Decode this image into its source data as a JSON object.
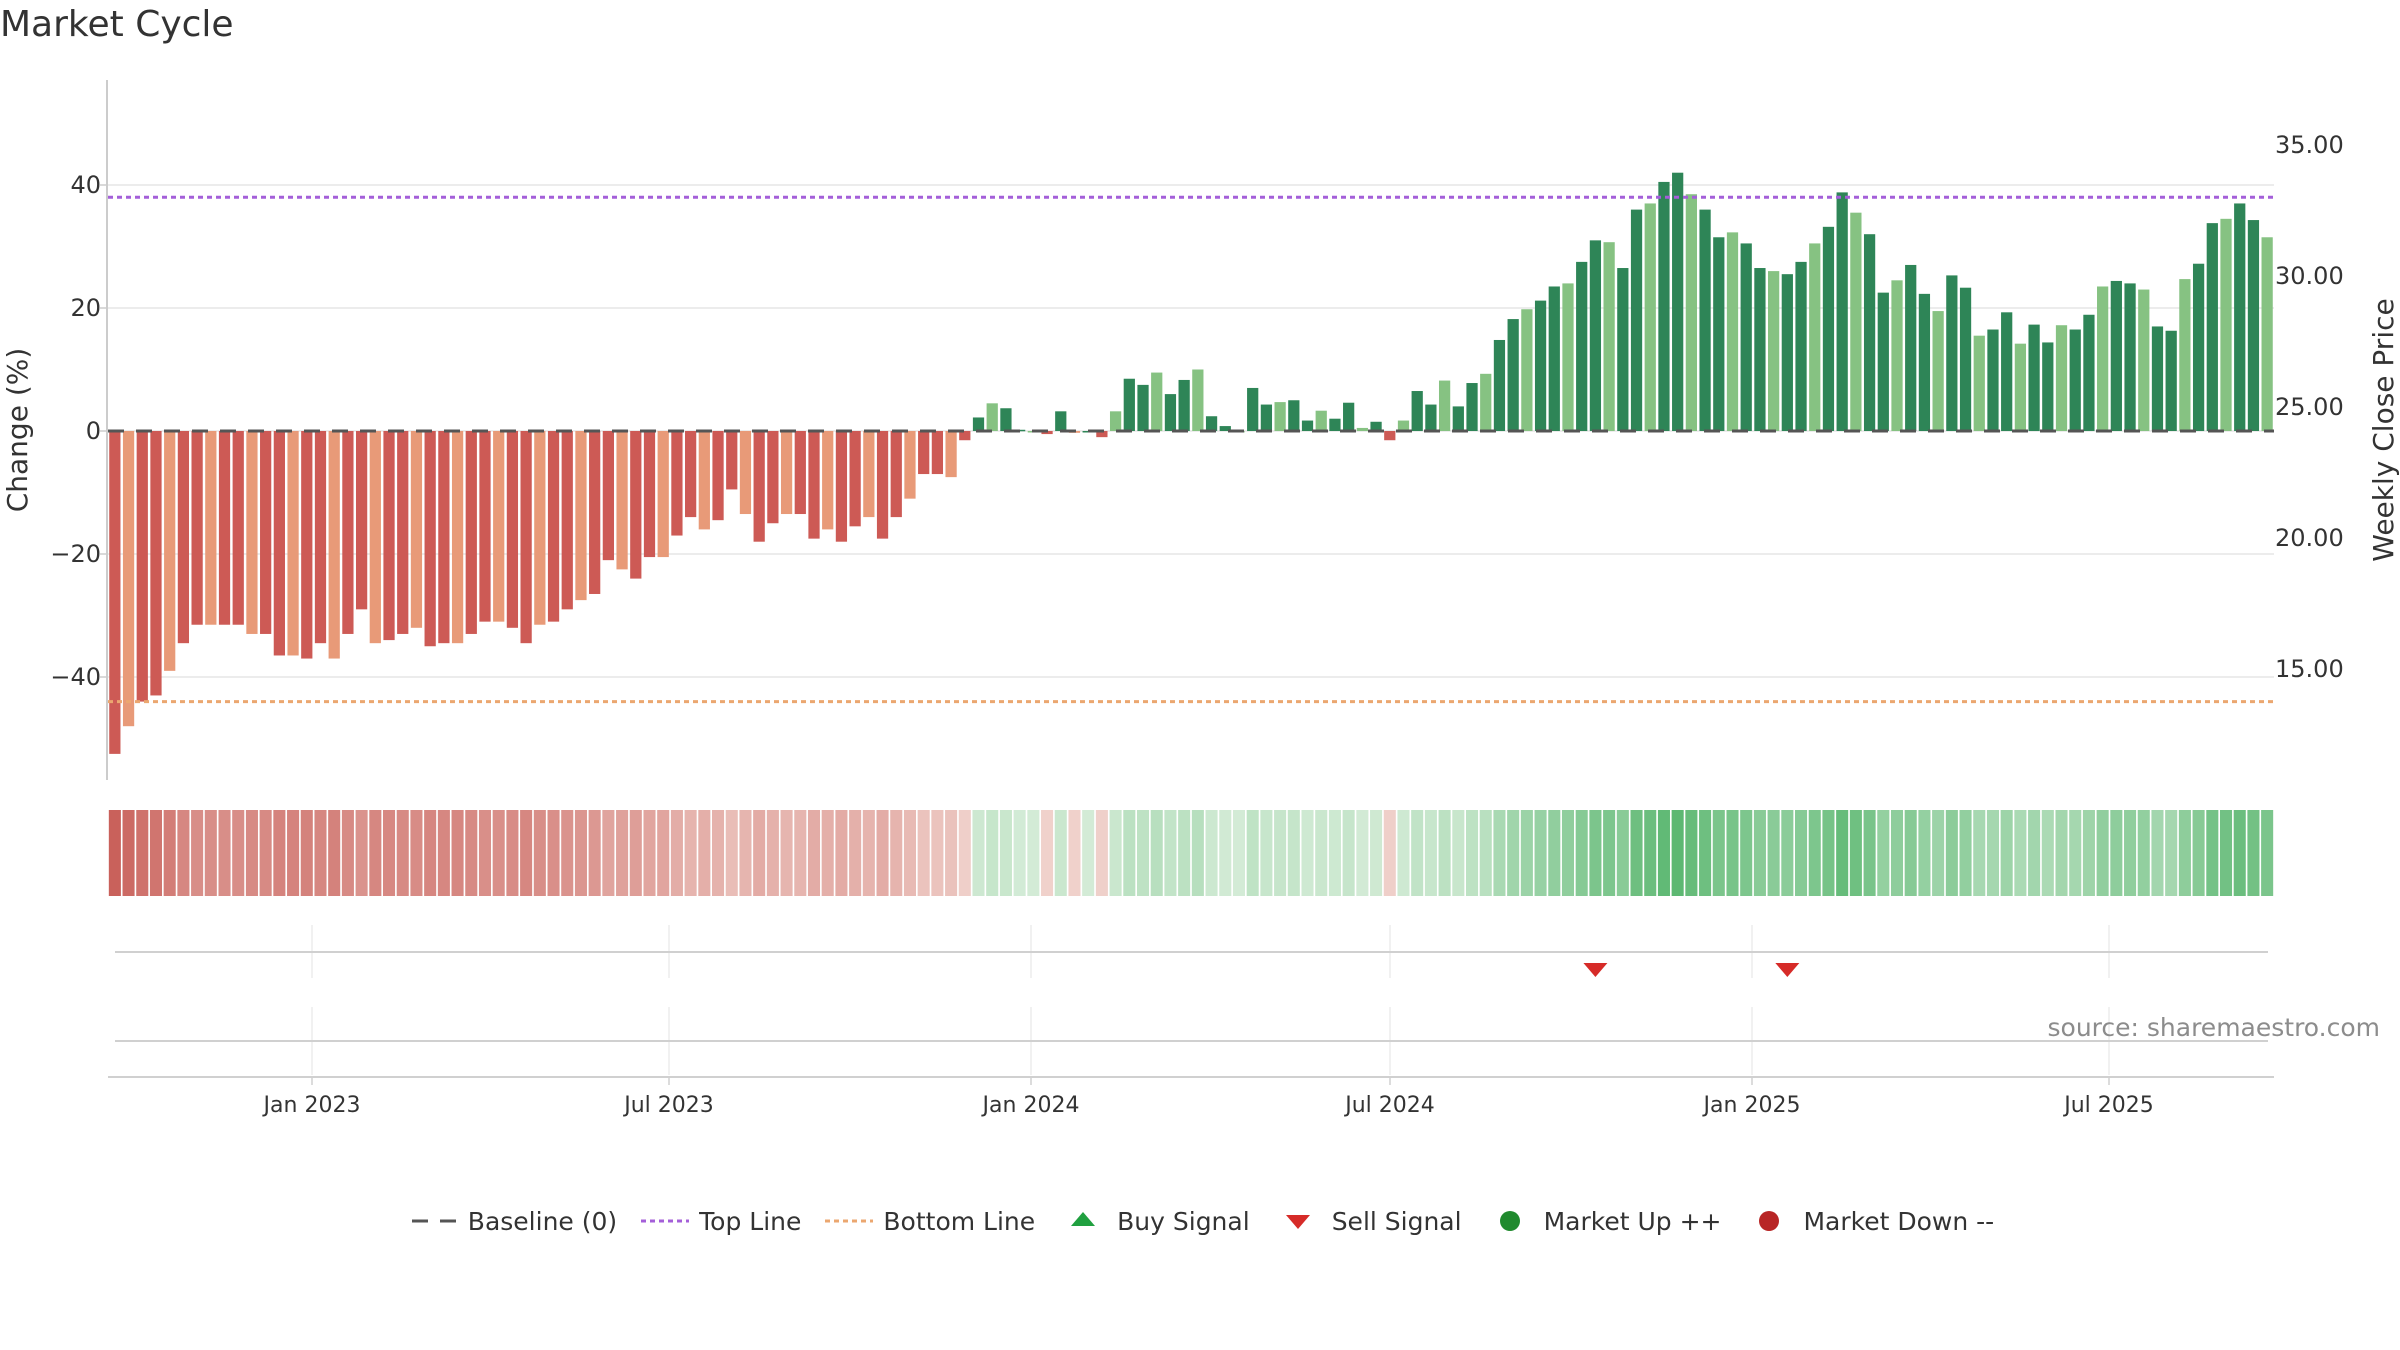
{
  "title": "Market Cycle",
  "source": "source: sharemaestro.com",
  "chart_data": {
    "type": "bar",
    "x_tick_labels": [
      "Jan 2023",
      "Jul 2023",
      "Jan 2024",
      "Jul 2024",
      "Jan 2025",
      "Jul 2025"
    ],
    "y_left": {
      "label": "Change (%)",
      "ticks": [
        "40",
        "20",
        "0",
        "−20",
        "−40"
      ],
      "tick_values": [
        40,
        20,
        0,
        -20,
        -40
      ],
      "range": [
        -57,
        57
      ]
    },
    "y_right": {
      "label": "Weekly Close Price",
      "ticks": [
        "35.00",
        "30.00",
        "25.00",
        "20.00",
        "15.00"
      ],
      "tick_values": [
        35,
        30,
        25,
        20,
        15
      ]
    },
    "reference_lines": {
      "baseline": 0,
      "top_line": 38,
      "bottom_line": -44
    },
    "start_week": "2022-10-24",
    "weekly_change_pct": [
      -52.5,
      -48,
      -44,
      -43,
      -39,
      -34.5,
      -31.5,
      -31.5,
      -31.5,
      -31.5,
      -33,
      -33,
      -36.5,
      -36.5,
      -37,
      -34.5,
      -37,
      -33,
      -29,
      -34.5,
      -34,
      -33,
      -32,
      -35,
      -34.5,
      -34.5,
      -33,
      -31,
      -31,
      -32,
      -34.5,
      -31.5,
      -31,
      -29,
      -27.5,
      -26.5,
      -21,
      -22.5,
      -24,
      -20.5,
      -20.5,
      -17,
      -14,
      -16,
      -14.5,
      -9.5,
      -13.5,
      -18,
      -15,
      -13.5,
      -13.5,
      -17.5,
      -16,
      -18,
      -15.5,
      -14,
      -17.5,
      -14,
      -11,
      -7,
      -7,
      -7.5,
      -1.5,
      2.2,
      4.5,
      3.7,
      0.2,
      0,
      -0.5,
      3.2,
      -0.3,
      0,
      -1,
      3.2,
      8.5,
      7.5,
      9.5,
      6,
      8.3,
      10,
      2.4,
      0.8,
      0,
      7,
      4.3,
      4.7,
      5,
      1.7,
      3.3,
      2,
      4.6,
      0.5,
      1.5,
      -1.5,
      1.7,
      6.5,
      4.3,
      8.2,
      4,
      7.8,
      9.3,
      14.8,
      18.2,
      19.8,
      21.2,
      23.5,
      24,
      27.5,
      31,
      30.7,
      26.5,
      36,
      37,
      40.5,
      42,
      38.5,
      36,
      31.5,
      32.3,
      30.5,
      26.5,
      26,
      25.5,
      27.5,
      30.5,
      33.2,
      38.8,
      35.5,
      32,
      22.5,
      24.5,
      27,
      22.3,
      19.5,
      25.3,
      23.3,
      15.5,
      16.5,
      19.3,
      14.2,
      17.3,
      14.4,
      17.2,
      16.5,
      18.9,
      23.5,
      24.4,
      24,
      23,
      17,
      16.3,
      24.7,
      27.2,
      33.8,
      34.5,
      37,
      34.3,
      31.5
    ],
    "market_band": "weekly cycle strength, red (down) to green (up)",
    "sell_signals": [
      "2024-11-18",
      "2025-02-24"
    ],
    "buy_signals": [],
    "legend": [
      "Baseline (0)",
      "Top Line",
      "Bottom Line",
      "Buy Signal",
      "Sell Signal",
      "Market Up ++",
      "Market Down --"
    ],
    "colors": {
      "down_dark": "#cd5a55",
      "down_light": "#e89a78",
      "down_zero": "#e8957c",
      "up_dark": "#2e8557",
      "up_light": "#86c282",
      "top_line": "#a45fd9",
      "bottom_line": "#eba770",
      "baseline": "#555555",
      "buy": "#20a040",
      "sell": "#d62b28",
      "market_up": "#208a2e",
      "market_down": "#b82525",
      "grid": "#e6e6e6"
    }
  }
}
